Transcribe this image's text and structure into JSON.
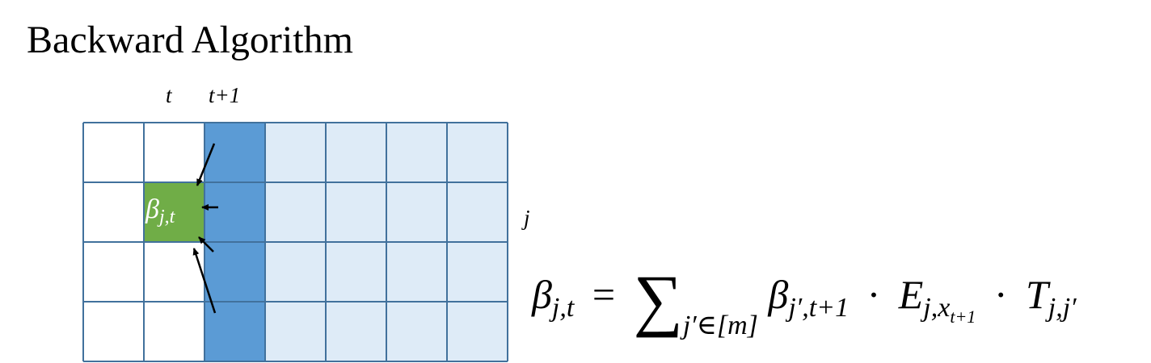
{
  "title": "Backward Algorithm",
  "column_labels": {
    "t": "t",
    "t_plus_1": "t+1"
  },
  "row_label": "j",
  "cell": {
    "symbol": "β",
    "subscript": "j,t"
  },
  "formula": {
    "lhs_symbol": "β",
    "lhs_subscript": "j,t",
    "equals": "=",
    "sum_symbol": "∑",
    "sum_subscript": "j′∈[m]",
    "term1_symbol": "β",
    "term1_subscript": "j′,t+1",
    "dot1": "·",
    "term2_symbol": "E",
    "term2_subscript": "j,x",
    "term2_subsubscript": "t+1",
    "dot2": "·",
    "term3_symbol": "T",
    "term3_subscript": "j,j′"
  },
  "colors": {
    "grid_line": "#41719C",
    "highlight_column": "#5B9BD5",
    "future_columns": "#DEEBF7",
    "current_cell": "#70AD47",
    "arrow": "#000000"
  }
}
